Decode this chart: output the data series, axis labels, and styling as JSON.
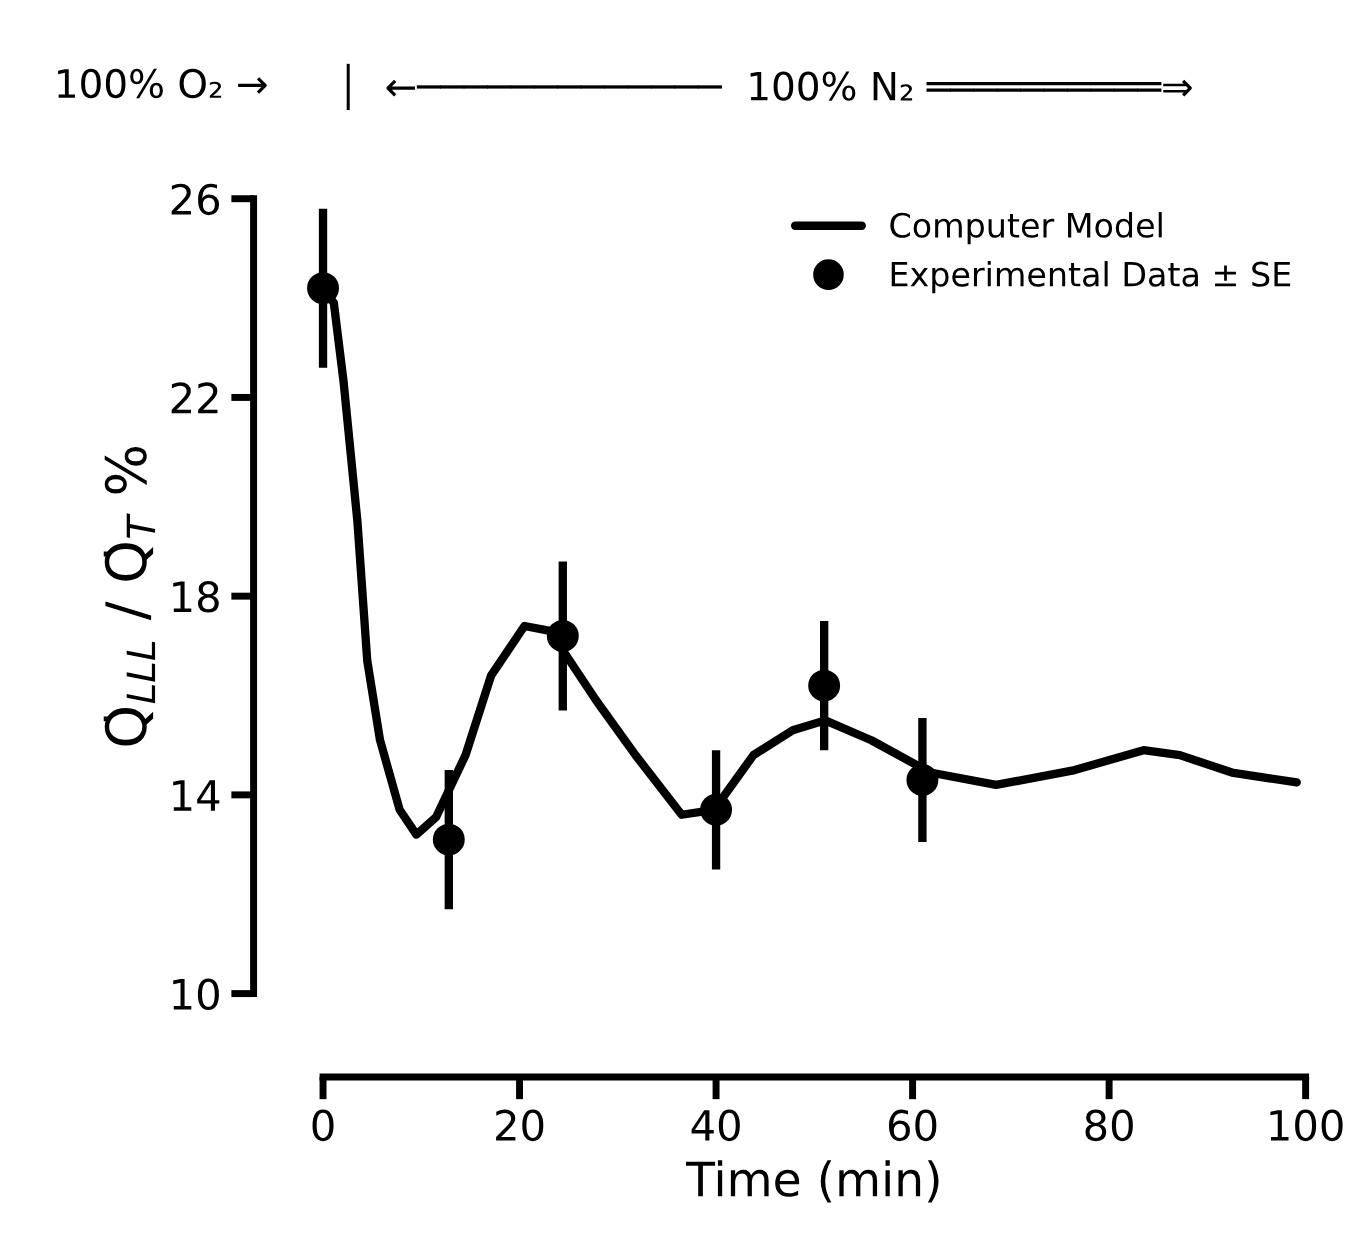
{
  "chart_data": {
    "type": "line",
    "xlabel": "Time (min)",
    "ylabel": "Q̇$_{LLL}$ / Q̇$_{T}$ %",
    "annotations": [
      "100% O₂ →",
      "│  ←─────────────  100% N₂ ══════════⇒"
    ],
    "xlim": [
      0,
      100
    ],
    "xticks": [
      0,
      20,
      40,
      60,
      80,
      100
    ],
    "ylim": [
      10,
      26
    ],
    "yticks": [
      10,
      14,
      18,
      22,
      26
    ],
    "grid": false,
    "legend": "top right",
    "series": [
      {
        "name": "Computer Model",
        "color": "#000000",
        "marker": "none",
        "line_style": "solid",
        "x": [
          0,
          1.1,
          2.1,
          3.5,
          4.5,
          5.8,
          7.8,
          9.5,
          11.5,
          14.5,
          17.1,
          20.5,
          23.1,
          27.8,
          31.8,
          36.5,
          39.8,
          43.8,
          47.8,
          51.1,
          55.8,
          61.8,
          68.5,
          76.5,
          83.5,
          87.2,
          92.5,
          99.1
        ],
        "values": [
          24.2,
          23.9,
          22.3,
          19.5,
          16.7,
          15.1,
          13.7,
          13.2,
          13.55,
          14.8,
          16.4,
          17.4,
          17.3,
          15.9,
          14.8,
          13.6,
          13.7,
          14.8,
          15.3,
          15.5,
          15.1,
          14.45,
          14.2,
          14.5,
          14.9,
          14.8,
          14.45,
          14.25
        ]
      },
      {
        "name": "Experimental Data ± SE",
        "type": "scatter",
        "color": "#000000",
        "marker": "circle",
        "x": [
          0,
          12.8,
          24.4,
          40,
          51,
          61
        ],
        "values": [
          24.2,
          13.1,
          17.2,
          13.7,
          16.2,
          14.3
        ],
        "errors": [
          1.6,
          1.4,
          1.5,
          1.2,
          1.3,
          1.25
        ]
      }
    ]
  }
}
